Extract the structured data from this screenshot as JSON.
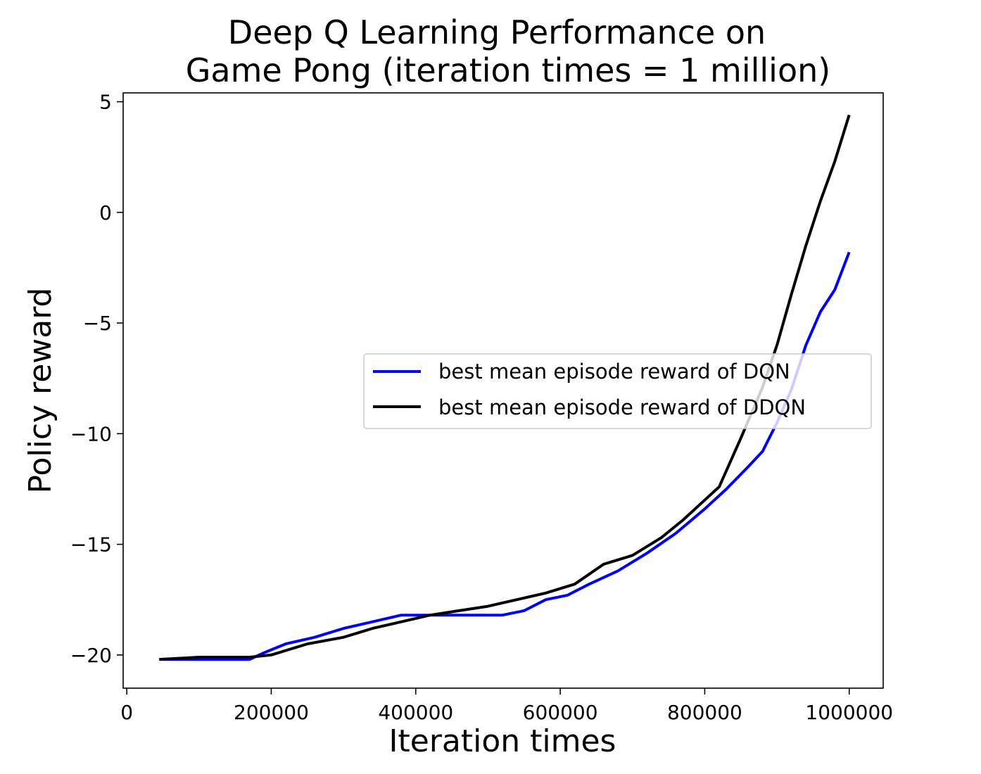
{
  "chart_data": {
    "type": "line",
    "title": [
      "Deep Q Learning Performance on",
      "Game Pong (iteration times = 1 million)"
    ],
    "xlabel": "Iteration times",
    "ylabel": "Policy reward",
    "xlim": [
      -5000,
      1047000
    ],
    "ylim": [
      -21.5,
      5.4
    ],
    "xticks": [
      0,
      200000,
      400000,
      600000,
      800000,
      1000000
    ],
    "xtick_labels": [
      "0",
      "200000",
      "400000",
      "600000",
      "800000",
      "1000000"
    ],
    "yticks": [
      5,
      0,
      -5,
      -10,
      -15,
      -20
    ],
    "ytick_labels": [
      "5",
      "0",
      "−5",
      "−10",
      "−15",
      "−20"
    ],
    "grid": false,
    "legend_position": "center-right",
    "series": [
      {
        "name": "best mean episode reward of DQN",
        "color": "#0000ff",
        "x": [
          45000,
          100000,
          170000,
          190000,
          220000,
          260000,
          300000,
          340000,
          380000,
          450000,
          520000,
          550000,
          580000,
          610000,
          640000,
          680000,
          720000,
          760000,
          800000,
          830000,
          860000,
          880000,
          900000,
          920000,
          940000,
          960000,
          980000,
          1000000
        ],
        "y": [
          -20.2,
          -20.2,
          -20.2,
          -19.9,
          -19.5,
          -19.2,
          -18.8,
          -18.5,
          -18.2,
          -18.2,
          -18.2,
          -18.0,
          -17.5,
          -17.3,
          -16.8,
          -16.2,
          -15.4,
          -14.5,
          -13.4,
          -12.5,
          -11.5,
          -10.8,
          -9.5,
          -8.0,
          -6.0,
          -4.5,
          -3.5,
          -1.8
        ]
      },
      {
        "name": "best mean episode reward of DDQN",
        "color": "#000000",
        "x": [
          45000,
          100000,
          150000,
          170000,
          200000,
          250000,
          300000,
          340000,
          380000,
          420000,
          460000,
          500000,
          540000,
          580000,
          620000,
          660000,
          700000,
          740000,
          770000,
          800000,
          820000,
          850000,
          880000,
          900000,
          920000,
          940000,
          960000,
          980000,
          1000000
        ],
        "y": [
          -20.2,
          -20.1,
          -20.1,
          -20.1,
          -20.0,
          -19.5,
          -19.2,
          -18.8,
          -18.5,
          -18.2,
          -18.0,
          -17.8,
          -17.5,
          -17.2,
          -16.8,
          -15.9,
          -15.5,
          -14.7,
          -13.9,
          -13.0,
          -12.4,
          -10.2,
          -7.9,
          -6.0,
          -3.7,
          -1.5,
          0.5,
          2.3,
          4.4
        ]
      }
    ]
  }
}
